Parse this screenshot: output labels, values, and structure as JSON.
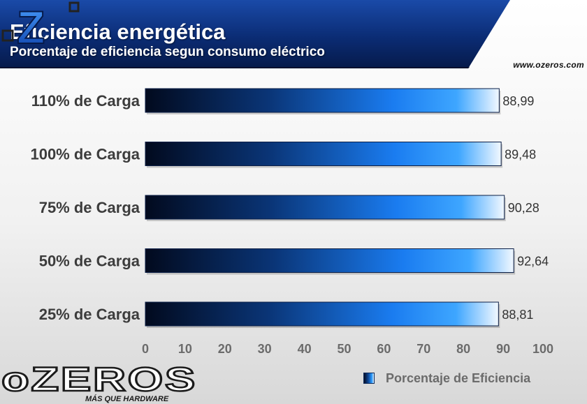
{
  "header": {
    "title": "Eficiencia energética",
    "subtitle": "Porcentaje de eficiencia segun consumo eléctrico",
    "site_url": "www.ozeros.com",
    "logo_letter": "Z"
  },
  "brand": {
    "wordmark": "oZEROS",
    "tagline": "MÁS QUE HARDWARE",
    "accent_color": "#1a6fe0",
    "header_color": "#0a2a6b"
  },
  "chart_data": {
    "type": "bar",
    "orientation": "horizontal",
    "title": "Eficiencia energética",
    "subtitle": "Porcentaje de eficiencia segun consumo eléctrico",
    "categories": [
      "110% de Carga",
      "100% de Carga",
      "75% de Carga",
      "50% de Carga",
      "25% de Carga"
    ],
    "series": [
      {
        "name": "Porcentaje de Eficiencia",
        "values": [
          88.99,
          89.48,
          90.28,
          92.64,
          88.81
        ]
      }
    ],
    "value_labels": [
      "88,99",
      "89,48",
      "90,28",
      "92,64",
      "88,81"
    ],
    "xlim": [
      0,
      100
    ],
    "x_ticks": [
      0,
      10,
      20,
      30,
      40,
      50,
      60,
      70,
      80,
      90,
      100
    ],
    "grid": false,
    "legend": "bottom-right"
  },
  "legend": {
    "label": "Porcentaje de Eficiencia"
  }
}
